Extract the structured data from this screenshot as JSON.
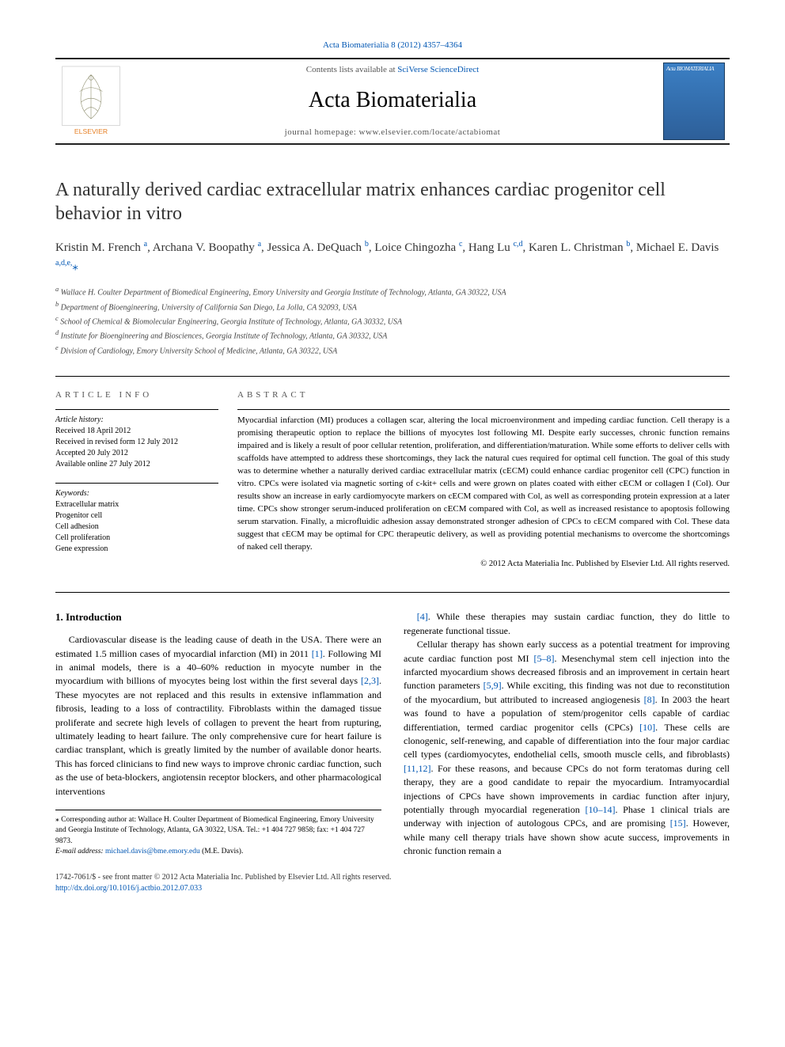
{
  "journal": {
    "citation": "Acta Biomaterialia 8 (2012) 4357–4364",
    "contents_prefix": "Contents lists available at ",
    "contents_link": "SciVerse ScienceDirect",
    "name": "Acta Biomaterialia",
    "homepage_label": "journal homepage: www.elsevier.com/locate/actabiomat",
    "cover_label": "Acta BIOMATERIALIA"
  },
  "publisher": "ELSEVIER",
  "article": {
    "title": "A naturally derived cardiac extracellular matrix enhances cardiac progenitor cell behavior in vitro",
    "authors_html": "Kristin M. French <sup>a</sup>, Archana V. Boopathy <sup>a</sup>, Jessica A. DeQuach <sup>b</sup>, Loice Chingozha <sup>c</sup>, Hang Lu <sup>c,d</sup>, Karen L. Christman <sup>b</sup>, Michael E. Davis <sup>a,d,e,</sup><span class=\"corr\">⁎</span>",
    "affiliations": [
      "a Wallace H. Coulter Department of Biomedical Engineering, Emory University and Georgia Institute of Technology, Atlanta, GA 30322, USA",
      "b Department of Bioengineering, University of California San Diego, La Jolla, CA 92093, USA",
      "c School of Chemical & Biomolecular Engineering, Georgia Institute of Technology, Atlanta, GA 30332, USA",
      "d Institute for Bioengineering and Biosciences, Georgia Institute of Technology, Atlanta, GA 30332, USA",
      "e Division of Cardiology, Emory University School of Medicine, Atlanta, GA 30322, USA"
    ]
  },
  "info": {
    "label": "ARTICLE INFO",
    "history_label": "Article history:",
    "history": [
      "Received 18 April 2012",
      "Received in revised form 12 July 2012",
      "Accepted 20 July 2012",
      "Available online 27 July 2012"
    ],
    "keywords_label": "Keywords:",
    "keywords": [
      "Extracellular matrix",
      "Progenitor cell",
      "Cell adhesion",
      "Cell proliferation",
      "Gene expression"
    ]
  },
  "abstract": {
    "label": "ABSTRACT",
    "text": "Myocardial infarction (MI) produces a collagen scar, altering the local microenvironment and impeding cardiac function. Cell therapy is a promising therapeutic option to replace the billions of myocytes lost following MI. Despite early successes, chronic function remains impaired and is likely a result of poor cellular retention, proliferation, and differentiation/maturation. While some efforts to deliver cells with scaffolds have attempted to address these shortcomings, they lack the natural cues required for optimal cell function. The goal of this study was to determine whether a naturally derived cardiac extracellular matrix (cECM) could enhance cardiac progenitor cell (CPC) function in vitro. CPCs were isolated via magnetic sorting of c-kit+ cells and were grown on plates coated with either cECM or collagen I (Col). Our results show an increase in early cardiomyocyte markers on cECM compared with Col, as well as corresponding protein expression at a later time. CPCs show stronger serum-induced proliferation on cECM compared with Col, as well as increased resistance to apoptosis following serum starvation. Finally, a microfluidic adhesion assay demonstrated stronger adhesion of CPCs to cECM compared with Col. These data suggest that cECM may be optimal for CPC therapeutic delivery, as well as providing potential mechanisms to overcome the shortcomings of naked cell therapy.",
    "copyright": "© 2012 Acta Materialia Inc. Published by Elsevier Ltd. All rights reserved."
  },
  "body": {
    "section_heading": "1. Introduction",
    "col1_p1": "Cardiovascular disease is the leading cause of death in the USA. There were an estimated 1.5 million cases of myocardial infarction (MI) in 2011 [1]. Following MI in animal models, there is a 40–60% reduction in myocyte number in the myocardium with billions of myocytes being lost within the first several days [2,3]. These myocytes are not replaced and this results in extensive inflammation and fibrosis, leading to a loss of contractility. Fibroblasts within the damaged tissue proliferate and secrete high levels of collagen to prevent the heart from rupturing, ultimately leading to heart failure. The only comprehensive cure for heart failure is cardiac transplant, which is greatly limited by the number of available donor hearts. This has forced clinicians to find new ways to improve chronic cardiac function, such as the use of beta-blockers, angiotensin receptor blockers, and other pharmacological interventions",
    "col2_p1": "[4]. While these therapies may sustain cardiac function, they do little to regenerate functional tissue.",
    "col2_p2": "Cellular therapy has shown early success as a potential treatment for improving acute cardiac function post MI [5–8]. Mesenchymal stem cell injection into the infarcted myocardium shows decreased fibrosis and an improvement in certain heart function parameters [5,9]. While exciting, this finding was not due to reconstitution of the myocardium, but attributed to increased angiogenesis [8]. In 2003 the heart was found to have a population of stem/progenitor cells capable of cardiac differentiation, termed cardiac progenitor cells (CPCs) [10]. These cells are clonogenic, self-renewing, and capable of differentiation into the four major cardiac cell types (cardiomyocytes, endothelial cells, smooth muscle cells, and fibroblasts) [11,12]. For these reasons, and because CPCs do not form teratomas during cell therapy, they are a good candidate to repair the myocardium. Intramyocardial injections of CPCs have shown improvements in cardiac function after injury, potentially through myocardial regeneration [10–14]. Phase 1 clinical trials are underway with injection of autologous CPCs, and are promising [15]. However, while many cell therapy trials have shown show acute success, improvements in chronic function remain a",
    "refs": {
      "r1": "[1]",
      "r23": "[2,3]",
      "r4": "[4]",
      "r58": "[5–8]",
      "r59": "[5,9]",
      "r8": "[8]",
      "r10": "[10]",
      "r1112": "[11,12]",
      "r1014": "[10–14]",
      "r15": "[15]"
    }
  },
  "footnote": {
    "corr": "⁎ Corresponding author at: Wallace H. Coulter Department of Biomedical Engineering, Emory University and Georgia Institute of Technology, Atlanta, GA 30322, USA. Tel.: +1 404 727 9858; fax: +1 404 727 9873.",
    "email_label": "E-mail address: ",
    "email": "michael.davis@bme.emory.edu",
    "email_suffix": " (M.E. Davis)."
  },
  "bottom": {
    "line1": "1742-7061/$ - see front matter © 2012 Acta Materialia Inc. Published by Elsevier Ltd. All rights reserved.",
    "doi": "http://dx.doi.org/10.1016/j.actbio.2012.07.033"
  },
  "colors": {
    "link": "#0056b3",
    "text": "#000000",
    "muted": "#555555"
  }
}
